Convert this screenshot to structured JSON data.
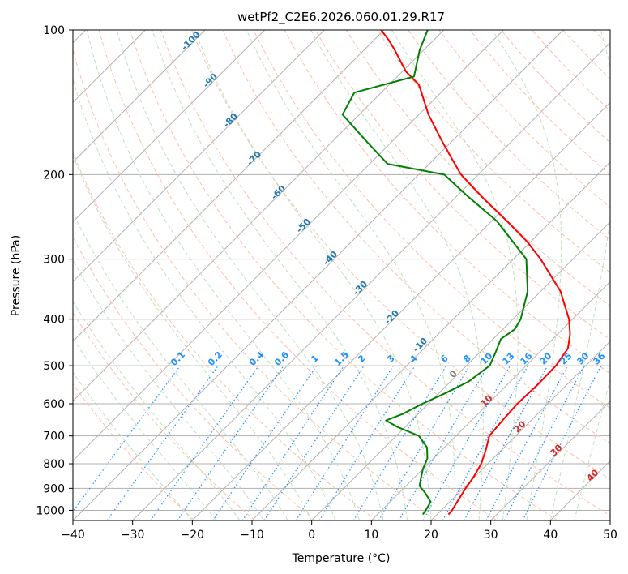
{
  "chart_data": {
    "type": "line",
    "title": "wetPf2_C2E6.2026.060.01.29.R17",
    "xlabel": "Temperature (°C)",
    "ylabel": "Pressure (hPa)",
    "xlim": [
      -40,
      50
    ],
    "ylim": [
      1050,
      100
    ],
    "y_scale": "log",
    "grid": true,
    "x_ticks": [
      "−40",
      "−30",
      "−20",
      "−10",
      "0",
      "10",
      "20",
      "30",
      "40",
      "50"
    ],
    "y_ticks": [
      {
        "p": 100,
        "label": "100"
      },
      {
        "p": 200,
        "label": "200"
      },
      {
        "p": 300,
        "label": "300"
      },
      {
        "p": 400,
        "label": "400"
      },
      {
        "p": 500,
        "label": "500"
      },
      {
        "p": 600,
        "label": "600"
      },
      {
        "p": 700,
        "label": "700"
      },
      {
        "p": 800,
        "label": "800"
      },
      {
        "p": 900,
        "label": "900"
      },
      {
        "p": 1000,
        "label": "1000"
      }
    ],
    "series": [
      {
        "color": "#ff0000",
        "points": [
          [
            1020,
            21.9
          ],
          [
            1000,
            21.8
          ],
          [
            950,
            21.1
          ],
          [
            900,
            20.4
          ],
          [
            850,
            19.8
          ],
          [
            800,
            18.9
          ],
          [
            750,
            17.4
          ],
          [
            700,
            15.6
          ],
          [
            650,
            15.2
          ],
          [
            600,
            14.9
          ],
          [
            550,
            15.1
          ],
          [
            500,
            15.0
          ],
          [
            460,
            14.1
          ],
          [
            430,
            12.1
          ],
          [
            400,
            9.4
          ],
          [
            350,
            3.3
          ],
          [
            300,
            -5.4
          ],
          [
            275,
            -10.8
          ],
          [
            250,
            -17.4
          ],
          [
            225,
            -24.9
          ],
          [
            200,
            -32.9
          ],
          [
            185,
            -37.2
          ],
          [
            170,
            -41.8
          ],
          [
            150,
            -48.4
          ],
          [
            130,
            -55.0
          ],
          [
            122,
            -59.4
          ],
          [
            110,
            -64.9
          ],
          [
            105,
            -67.5
          ],
          [
            100,
            -70.5
          ]
        ]
      },
      {
        "color": "#008000",
        "points": [
          [
            1020,
            17.6
          ],
          [
            1000,
            17.4
          ],
          [
            960,
            16.8
          ],
          [
            920,
            14.4
          ],
          [
            890,
            12.3
          ],
          [
            860,
            11.3
          ],
          [
            820,
            10.0
          ],
          [
            780,
            9.0
          ],
          [
            740,
            7.1
          ],
          [
            700,
            3.8
          ],
          [
            670,
            -1.4
          ],
          [
            650,
            -4.3
          ],
          [
            630,
            -2.6
          ],
          [
            600,
            -1.0
          ],
          [
            570,
            1.1
          ],
          [
            540,
            3.0
          ],
          [
            500,
            3.9
          ],
          [
            470,
            2.7
          ],
          [
            440,
            1.3
          ],
          [
            420,
            2.0
          ],
          [
            400,
            1.3
          ],
          [
            350,
            -2.2
          ],
          [
            300,
            -7.8
          ],
          [
            250,
            -19.1
          ],
          [
            220,
            -28.8
          ],
          [
            200,
            -35.7
          ],
          [
            190,
            -47.0
          ],
          [
            170,
            -54.5
          ],
          [
            150,
            -62.8
          ],
          [
            135,
            -64.5
          ],
          [
            125,
            -57.2
          ],
          [
            110,
            -60.7
          ],
          [
            100,
            -62.7
          ]
        ]
      }
    ],
    "dry_adiabat_labels": [
      "-100",
      "-90",
      "-80",
      "-70",
      "-60",
      "-50",
      "-40",
      "-30",
      "-20",
      "-10",
      "0"
    ],
    "moist_adiabat_labels": [
      "10",
      "20",
      "30",
      "40"
    ],
    "mixing_ratio_labels": [
      "0.1",
      "0.2",
      "0.4",
      "0.6",
      "1",
      "1.5",
      "2",
      "3",
      "4",
      "6",
      "8",
      "10",
      "13",
      "16",
      "20",
      "25",
      "30",
      "36"
    ],
    "colors": {
      "isotherm": "#b0b0b0",
      "isobar": "#b0b0b0",
      "dry_adiabat": "#fbbfa8",
      "moist_adiabat": "#bfe0bf",
      "mixing_ratio": "#1e90ff",
      "dry_label": "#1f78b4",
      "moist_label": "#d62728"
    }
  }
}
